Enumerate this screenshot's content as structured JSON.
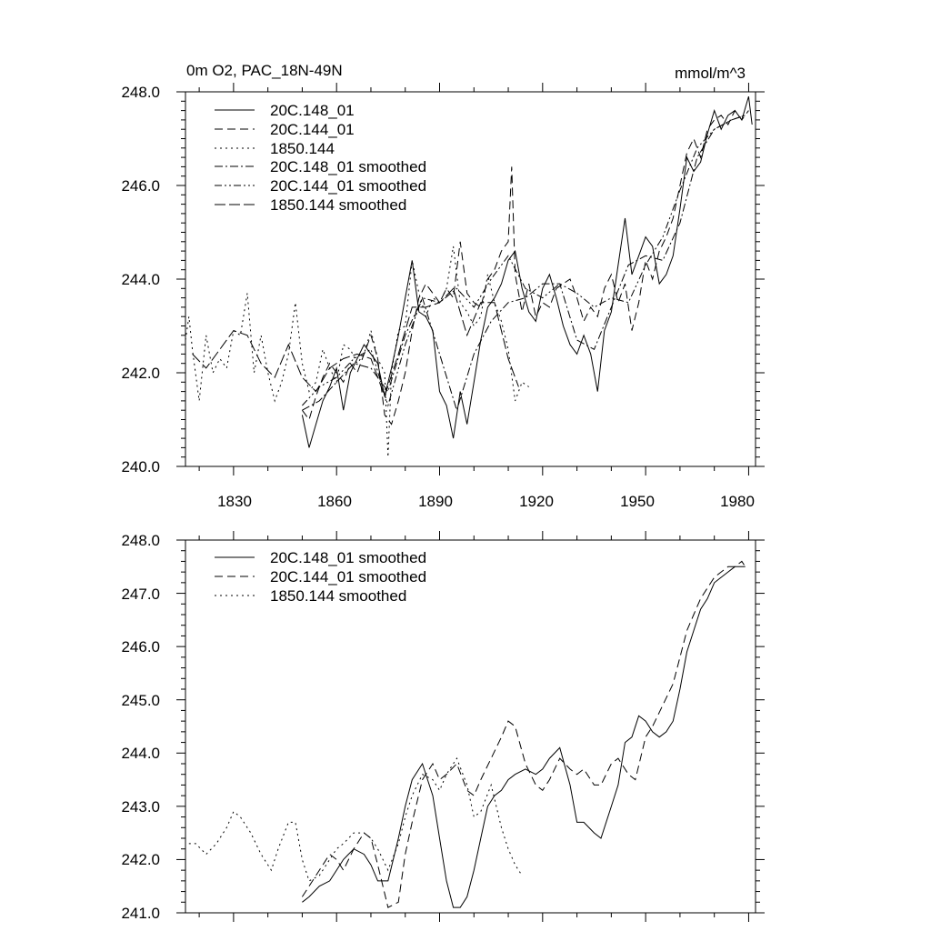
{
  "chart_data": [
    {
      "type": "line",
      "title_left": "0m O2, PAC_18N-49N",
      "title_right": "mmol/m^3",
      "xlim": [
        1816,
        1982
      ],
      "ylim": [
        240,
        248
      ],
      "x_ticks": [
        1830,
        1860,
        1890,
        1920,
        1950,
        1980
      ],
      "x_tick_labels": [
        "1830",
        "1860",
        "1890",
        "1920",
        "1950",
        "1980"
      ],
      "y_ticks": [
        240,
        242,
        244,
        246,
        248
      ],
      "y_tick_labels": [
        "240.0",
        "242.0",
        "244.0",
        "246.0",
        "248.0"
      ],
      "series": [
        {
          "name": "20C.148_01",
          "style": "solid",
          "x": [
            1850,
            1852,
            1854,
            1856,
            1858,
            1860,
            1862,
            1864,
            1866,
            1868,
            1870,
            1872,
            1874,
            1876,
            1878,
            1880,
            1882,
            1884,
            1886,
            1888,
            1890,
            1892,
            1894,
            1896,
            1898,
            1900,
            1902,
            1904,
            1906,
            1908,
            1910,
            1912,
            1914,
            1916,
            1918,
            1920,
            1922,
            1924,
            1926,
            1928,
            1930,
            1932,
            1934,
            1936,
            1938,
            1940,
            1942,
            1944,
            1946,
            1948,
            1950,
            1952,
            1954,
            1956,
            1958,
            1960,
            1962,
            1964,
            1966,
            1968,
            1970,
            1972,
            1974,
            1976,
            1978,
            1980,
            1981
          ],
          "values": [
            241.1,
            240.4,
            240.9,
            241.4,
            241.7,
            242.1,
            241.2,
            242.0,
            242.3,
            242.6,
            242.4,
            242.2,
            241.5,
            242.1,
            242.8,
            243.6,
            244.4,
            243.3,
            243.2,
            242.9,
            241.6,
            241.3,
            240.6,
            241.6,
            240.9,
            241.8,
            242.7,
            243.4,
            243.6,
            243.9,
            244.4,
            244.6,
            243.8,
            243.3,
            243.1,
            243.8,
            244.1,
            243.6,
            243.0,
            242.6,
            242.4,
            242.8,
            242.4,
            241.6,
            242.9,
            243.3,
            244.3,
            245.3,
            244.1,
            244.5,
            244.9,
            244.7,
            243.9,
            244.1,
            244.5,
            245.5,
            246.6,
            246.3,
            246.5,
            247.1,
            247.6,
            247.2,
            247.5,
            247.6,
            247.4,
            247.9,
            247.3
          ]
        },
        {
          "name": "20C.144_01",
          "style": "dash",
          "x": [
            1850,
            1852,
            1854,
            1856,
            1858,
            1860,
            1862,
            1864,
            1866,
            1868,
            1870,
            1872,
            1874,
            1876,
            1878,
            1880,
            1882,
            1884,
            1886,
            1888,
            1890,
            1892,
            1894,
            1896,
            1898,
            1900,
            1902,
            1904,
            1906,
            1908,
            1910,
            1911,
            1912,
            1914,
            1916,
            1918,
            1920,
            1922,
            1924,
            1926,
            1928,
            1930,
            1932,
            1934,
            1936,
            1938,
            1940,
            1942,
            1944,
            1946,
            1948,
            1950,
            1952,
            1954,
            1956,
            1958,
            1960,
            1962,
            1964,
            1966,
            1968,
            1970,
            1972,
            1974,
            1976,
            1978,
            1980
          ],
          "values": [
            241.2,
            241.0,
            241.5,
            241.9,
            242.2,
            242.0,
            241.8,
            242.2,
            242.0,
            242.4,
            242.8,
            242.3,
            241.1,
            240.9,
            241.4,
            242.0,
            242.9,
            243.6,
            243.9,
            243.7,
            243.5,
            243.8,
            243.6,
            244.8,
            243.7,
            243.5,
            243.4,
            244.0,
            244.2,
            244.6,
            244.8,
            246.4,
            244.1,
            243.3,
            243.9,
            243.2,
            243.5,
            243.4,
            243.8,
            243.9,
            244.0,
            243.6,
            243.1,
            243.4,
            243.2,
            243.8,
            244.1,
            243.5,
            243.9,
            242.9,
            243.5,
            244.4,
            244.0,
            244.6,
            244.9,
            245.3,
            246.0,
            246.7,
            247.0,
            246.6,
            247.2,
            247.4,
            247.5,
            247.3,
            247.6,
            247.4,
            247.6
          ]
        },
        {
          "name": "1850.144",
          "style": "dot",
          "x": [
            1816,
            1817,
            1818,
            1820,
            1822,
            1824,
            1826,
            1828,
            1830,
            1832,
            1834,
            1836,
            1838,
            1840,
            1842,
            1844,
            1846,
            1848,
            1850,
            1852,
            1854,
            1856,
            1858,
            1860,
            1862,
            1864,
            1866,
            1868,
            1870,
            1872,
            1874,
            1875,
            1876,
            1878,
            1880,
            1882,
            1884,
            1886,
            1888,
            1890,
            1892,
            1894,
            1896,
            1898,
            1900,
            1902,
            1904,
            1906,
            1908,
            1910,
            1912,
            1914,
            1916
          ],
          "values": [
            242.7,
            243.2,
            242.5,
            241.4,
            242.8,
            242.0,
            242.3,
            242.1,
            242.9,
            242.8,
            243.7,
            242.0,
            242.8,
            242.0,
            241.4,
            241.8,
            242.4,
            243.5,
            242.2,
            241.6,
            241.8,
            242.5,
            242.1,
            241.8,
            242.6,
            242.5,
            242.2,
            242.4,
            242.9,
            242.3,
            242.0,
            240.2,
            242.0,
            242.9,
            243.0,
            244.4,
            243.7,
            243.2,
            243.6,
            243.5,
            243.8,
            244.7,
            243.5,
            243.3,
            243.0,
            243.2,
            244.1,
            243.5,
            243.1,
            242.5,
            241.4,
            241.8,
            241.7
          ]
        },
        {
          "name": "20C.148_01 smoothed",
          "style": "dashdot",
          "x": [
            1850,
            1855,
            1860,
            1865,
            1870,
            1875,
            1880,
            1885,
            1890,
            1895,
            1900,
            1905,
            1910,
            1915,
            1920,
            1925,
            1930,
            1935,
            1940,
            1945,
            1950,
            1955,
            1960,
            1965,
            1970,
            1975,
            1979
          ],
          "values": [
            241.2,
            241.4,
            241.8,
            242.2,
            242.1,
            241.6,
            242.8,
            243.6,
            242.4,
            241.2,
            242.4,
            243.1,
            243.5,
            243.6,
            243.9,
            243.9,
            242.7,
            242.5,
            243.4,
            244.3,
            244.5,
            244.4,
            245.2,
            246.6,
            247.2,
            247.4,
            247.5
          ]
        },
        {
          "name": "20C.144_01 smoothed",
          "style": "dashdotdot",
          "x": [
            1850,
            1855,
            1860,
            1865,
            1870,
            1875,
            1880,
            1885,
            1890,
            1895,
            1900,
            1905,
            1910,
            1915,
            1920,
            1925,
            1930,
            1935,
            1940,
            1945,
            1950,
            1955,
            1960,
            1965,
            1970,
            1975,
            1979
          ],
          "values": [
            241.3,
            241.7,
            241.9,
            242.3,
            242.5,
            241.3,
            242.6,
            243.6,
            243.5,
            243.8,
            243.4,
            244.0,
            244.5,
            243.8,
            243.6,
            243.9,
            243.7,
            243.4,
            243.6,
            243.5,
            244.3,
            244.9,
            245.9,
            246.8,
            247.2,
            247.4,
            247.5
          ]
        },
        {
          "name": "1850.144 smoothed",
          "style": "longdash",
          "x": [
            1818,
            1822,
            1826,
            1830,
            1834,
            1838,
            1842,
            1846,
            1850,
            1854,
            1858,
            1862,
            1866,
            1870,
            1874,
            1878,
            1882,
            1886,
            1890,
            1894,
            1898,
            1902,
            1906,
            1910,
            1913
          ],
          "values": [
            242.4,
            242.1,
            242.5,
            242.9,
            242.8,
            242.2,
            241.9,
            242.6,
            241.9,
            241.6,
            242.1,
            242.3,
            242.4,
            242.3,
            241.5,
            242.4,
            243.4,
            243.4,
            243.5,
            243.8,
            242.8,
            243.5,
            243.5,
            242.3,
            241.7
          ]
        }
      ]
    },
    {
      "type": "line",
      "title_left": "",
      "title_right": "",
      "xlim": [
        1816,
        1982
      ],
      "ylim": [
        241,
        248
      ],
      "x_ticks": [
        1830,
        1860,
        1890,
        1920,
        1950,
        1980
      ],
      "x_tick_labels": [],
      "y_ticks": [
        241,
        242,
        243,
        244,
        245,
        246,
        247,
        248
      ],
      "y_tick_labels": [
        "241.0",
        "242.0",
        "243.0",
        "244.0",
        "245.0",
        "246.0",
        "247.0",
        "248.0"
      ],
      "series": [
        {
          "name": "20C.148_01 smoothed",
          "style": "solid",
          "x": [
            1850,
            1852,
            1855,
            1858,
            1860,
            1862,
            1865,
            1868,
            1870,
            1872,
            1875,
            1878,
            1880,
            1882,
            1885,
            1888,
            1890,
            1892,
            1894,
            1896,
            1898,
            1900,
            1902,
            1904,
            1906,
            1908,
            1910,
            1912,
            1915,
            1918,
            1920,
            1922,
            1925,
            1928,
            1930,
            1932,
            1935,
            1937,
            1940,
            1942,
            1944,
            1946,
            1948,
            1950,
            1952,
            1954,
            1956,
            1958,
            1960,
            1962,
            1964,
            1966,
            1968,
            1970,
            1972,
            1974,
            1976,
            1978,
            1979
          ],
          "values": [
            241.2,
            241.3,
            241.5,
            241.6,
            241.8,
            242.0,
            242.2,
            242.1,
            241.9,
            241.6,
            241.6,
            242.4,
            243.0,
            243.5,
            243.8,
            243.2,
            242.4,
            241.6,
            241.1,
            241.1,
            241.3,
            241.8,
            242.4,
            243.0,
            243.2,
            243.3,
            243.5,
            243.6,
            243.7,
            243.6,
            243.7,
            243.9,
            244.1,
            243.4,
            242.7,
            242.7,
            242.5,
            242.4,
            243.0,
            243.4,
            244.2,
            244.3,
            244.7,
            244.6,
            244.4,
            244.3,
            244.4,
            244.6,
            245.2,
            245.9,
            246.3,
            246.7,
            246.9,
            247.2,
            247.3,
            247.4,
            247.5,
            247.5,
            247.5
          ]
        },
        {
          "name": "20C.144_01 smoothed",
          "style": "dash",
          "x": [
            1850,
            1852,
            1855,
            1858,
            1860,
            1862,
            1865,
            1868,
            1870,
            1872,
            1875,
            1878,
            1880,
            1882,
            1885,
            1888,
            1890,
            1892,
            1895,
            1898,
            1900,
            1902,
            1905,
            1908,
            1910,
            1912,
            1915,
            1918,
            1920,
            1922,
            1925,
            1928,
            1930,
            1932,
            1935,
            1937,
            1940,
            1942,
            1945,
            1947,
            1950,
            1952,
            1955,
            1958,
            1960,
            1962,
            1964,
            1966,
            1968,
            1970,
            1972,
            1974,
            1976,
            1978,
            1979
          ],
          "values": [
            241.3,
            241.5,
            241.8,
            242.1,
            242.0,
            241.8,
            242.2,
            242.5,
            242.4,
            241.9,
            241.1,
            241.2,
            242.1,
            242.7,
            243.5,
            243.8,
            243.5,
            243.6,
            243.8,
            243.3,
            243.2,
            243.5,
            243.9,
            244.3,
            244.6,
            244.5,
            243.8,
            243.4,
            243.3,
            243.5,
            243.9,
            243.7,
            243.6,
            243.7,
            243.4,
            243.4,
            243.8,
            243.9,
            243.6,
            243.5,
            244.3,
            244.5,
            244.9,
            245.3,
            245.8,
            246.3,
            246.6,
            246.9,
            247.1,
            247.3,
            247.4,
            247.5,
            247.5,
            247.6,
            247.5
          ]
        },
        {
          "name": "1850.144 smoothed",
          "style": "dot",
          "x": [
            1817,
            1819,
            1822,
            1825,
            1828,
            1830,
            1832,
            1835,
            1838,
            1841,
            1843,
            1846,
            1848,
            1850,
            1852,
            1855,
            1858,
            1860,
            1862,
            1865,
            1868,
            1870,
            1872,
            1875,
            1878,
            1880,
            1882,
            1885,
            1888,
            1890,
            1892,
            1895,
            1898,
            1900,
            1902,
            1905,
            1908,
            1910,
            1912,
            1914
          ],
          "values": [
            242.3,
            242.3,
            242.1,
            242.3,
            242.6,
            242.9,
            242.8,
            242.5,
            242.1,
            241.8,
            242.2,
            242.7,
            242.7,
            242.0,
            241.6,
            241.7,
            242.0,
            242.2,
            242.3,
            242.5,
            242.5,
            242.4,
            242.2,
            241.8,
            242.3,
            242.8,
            243.2,
            243.6,
            243.5,
            243.3,
            243.6,
            243.9,
            243.4,
            242.8,
            242.9,
            243.4,
            242.6,
            242.2,
            241.9,
            241.7
          ]
        }
      ]
    }
  ]
}
